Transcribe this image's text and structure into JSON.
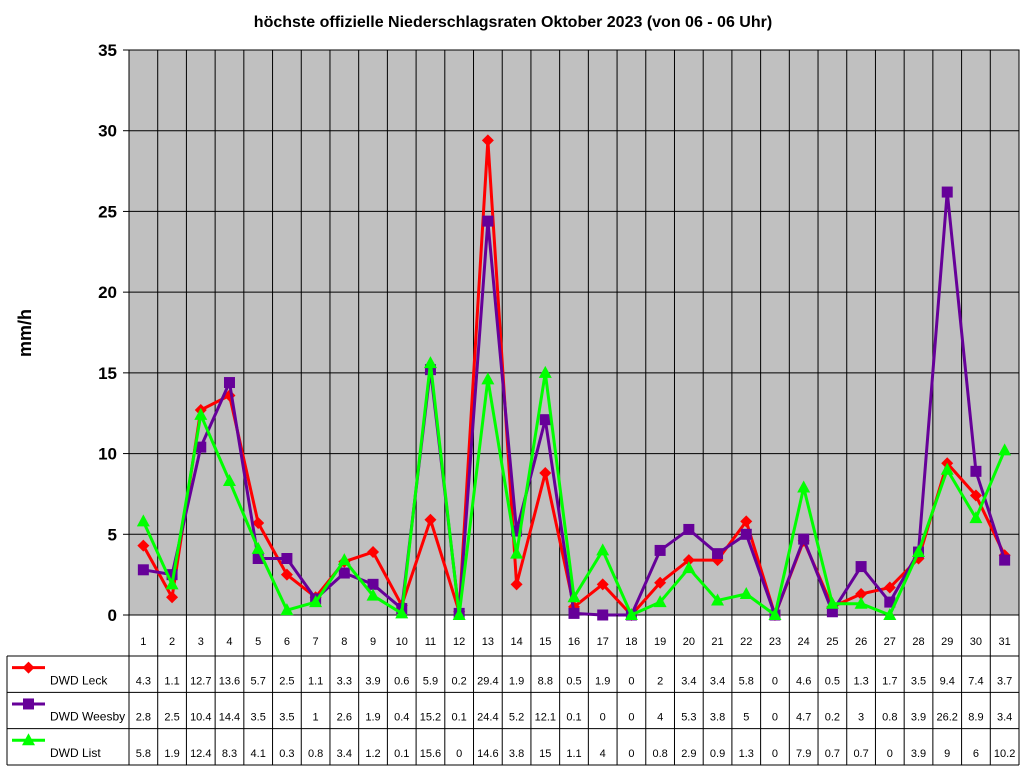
{
  "chart_data": {
    "type": "line",
    "title": "höchste offizielle Niederschlagsraten Oktober 2023 (von 06 - 06 Uhr)",
    "ylabel": "mm/h",
    "xlabel": "",
    "ylim": [
      0,
      35
    ],
    "yticks": [
      "0",
      "5",
      "10",
      "15",
      "20",
      "25",
      "30",
      "35"
    ],
    "grid": true,
    "categories": [
      "1",
      "2",
      "3",
      "4",
      "5",
      "6",
      "7",
      "8",
      "9",
      "10",
      "11",
      "12",
      "13",
      "14",
      "15",
      "16",
      "17",
      "18",
      "19",
      "20",
      "21",
      "22",
      "23",
      "24",
      "25",
      "26",
      "27",
      "28",
      "29",
      "30",
      "31"
    ],
    "series": [
      {
        "name": "DWD Leck",
        "color": "#ff0000",
        "marker": "diamond",
        "values": [
          4.3,
          1.1,
          12.7,
          13.6,
          5.7,
          2.5,
          1.1,
          3.3,
          3.9,
          0.6,
          5.9,
          0.2,
          29.4,
          1.9,
          8.8,
          0.5,
          1.9,
          0,
          2,
          3.4,
          3.4,
          5.8,
          0,
          4.6,
          0.5,
          1.3,
          1.7,
          3.5,
          9.4,
          7.4,
          3.7
        ]
      },
      {
        "name": "DWD Weesby",
        "color": "#660099",
        "marker": "square",
        "values": [
          2.8,
          2.5,
          10.4,
          14.4,
          3.5,
          3.5,
          1,
          2.6,
          1.9,
          0.4,
          15.2,
          0.1,
          24.4,
          5.2,
          12.1,
          0.1,
          0,
          0,
          4,
          5.3,
          3.8,
          5,
          0,
          4.7,
          0.2,
          3,
          0.8,
          3.9,
          26.2,
          8.9,
          3.4
        ]
      },
      {
        "name": "DWD List",
        "color": "#00ff00",
        "marker": "triangle",
        "values": [
          5.8,
          1.9,
          12.4,
          8.3,
          4.1,
          0.3,
          0.8,
          3.4,
          1.2,
          0.1,
          15.6,
          0,
          14.6,
          3.8,
          15,
          1.1,
          4,
          0,
          0.8,
          2.9,
          0.9,
          1.3,
          0,
          7.9,
          0.7,
          0.7,
          0,
          3.9,
          9,
          6,
          10.2
        ]
      }
    ],
    "plot_background": "#c0c0c0"
  }
}
